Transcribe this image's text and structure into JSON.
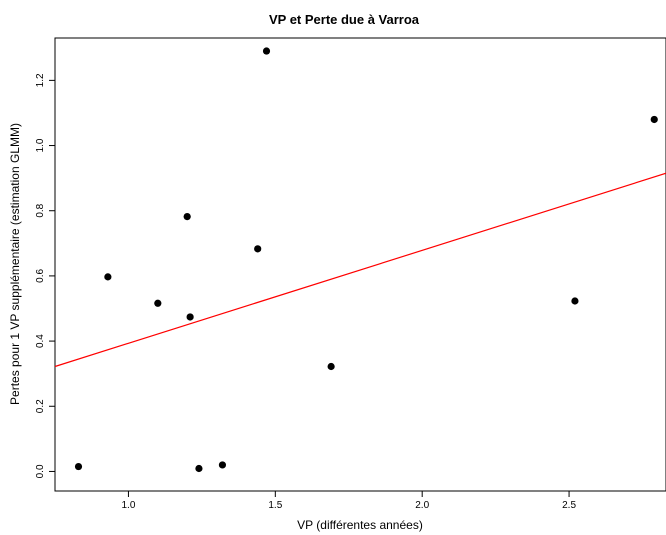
{
  "chart_data": {
    "type": "scatter",
    "title": "VP et Perte due à Varroa",
    "xlabel": "VP (différentes années)",
    "ylabel": "Pertes pour 1 VP supplémentaire (estimation GLMM)",
    "xlim": [
      0.75,
      2.83
    ],
    "ylim": [
      -0.06,
      1.33
    ],
    "x_ticks": [
      1.0,
      1.5,
      2.0,
      2.5
    ],
    "x_tick_labels": [
      "1.0",
      "1.5",
      "2.0",
      "2.5"
    ],
    "y_ticks": [
      0.0,
      0.2,
      0.4,
      0.6,
      0.8,
      1.0,
      1.2
    ],
    "y_tick_labels": [
      "0.0",
      "0.2",
      "0.4",
      "0.6",
      "0.8",
      "1.0",
      "1.2"
    ],
    "grid": false,
    "points": {
      "x": [
        0.83,
        0.93,
        1.1,
        1.2,
        1.21,
        1.24,
        1.32,
        1.44,
        1.47,
        1.69,
        2.52,
        2.79
      ],
      "y": [
        0.015,
        0.597,
        0.516,
        0.782,
        0.474,
        0.009,
        0.02,
        0.683,
        1.29,
        0.322,
        0.523,
        1.08
      ]
    },
    "regression_line": {
      "x": [
        0.75,
        2.83
      ],
      "y": [
        0.322,
        0.915
      ]
    },
    "colors": {
      "points": "#000000",
      "regression_line": "#ff0000",
      "axes": "#000000"
    }
  }
}
